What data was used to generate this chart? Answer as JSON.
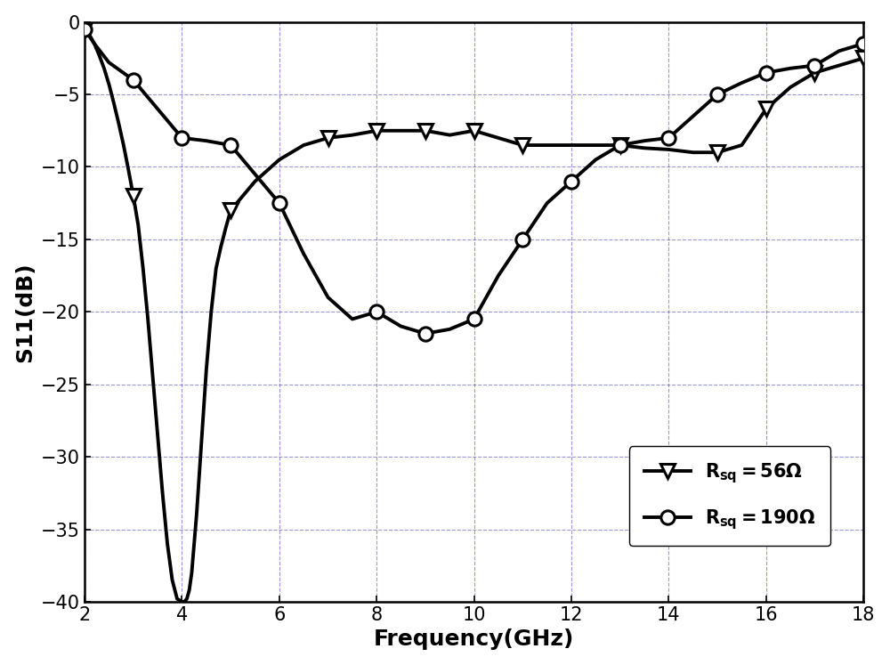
{
  "xlabel": "Frequency(GHz)",
  "ylabel": "S11(dB)",
  "xlim": [
    2,
    18
  ],
  "ylim": [
    -40,
    0
  ],
  "xticks": [
    2,
    4,
    6,
    8,
    10,
    12,
    14,
    16,
    18
  ],
  "yticks": [
    0,
    -5,
    -10,
    -15,
    -20,
    -25,
    -30,
    -35,
    -40
  ],
  "grid_color": "#3333aa",
  "grid_linestyle": "--",
  "background_color": "#ffffff",
  "line_color": "#000000",
  "line_width": 2.8,
  "series1_marker": "v",
  "series1_x": [
    2,
    3,
    5,
    7,
    8,
    9,
    10,
    11,
    13,
    15,
    16,
    17,
    18
  ],
  "series1_y": [
    -0.5,
    -12.0,
    -13.0,
    -8.0,
    -7.5,
    -7.5,
    -7.5,
    -8.5,
    -8.5,
    -9.0,
    -6.0,
    -3.5,
    -2.5
  ],
  "series2_marker": "o",
  "series2_x": [
    2,
    3,
    4,
    5,
    6,
    8,
    9,
    10,
    11,
    12,
    13,
    14,
    15,
    16,
    17,
    18
  ],
  "series2_y": [
    -0.5,
    -4.0,
    -8.0,
    -8.5,
    -12.5,
    -20.0,
    -21.5,
    -20.5,
    -15.0,
    -11.0,
    -8.5,
    -8.0,
    -5.0,
    -3.5,
    -3.0,
    -1.5
  ],
  "series1_dense_x": [
    2.0,
    2.1,
    2.2,
    2.3,
    2.4,
    2.5,
    2.6,
    2.7,
    2.8,
    2.9,
    3.0,
    3.1,
    3.2,
    3.3,
    3.4,
    3.5,
    3.6,
    3.7,
    3.8,
    3.9,
    4.0,
    4.05,
    4.1,
    4.15,
    4.2,
    4.3,
    4.4,
    4.5,
    4.6,
    4.7,
    4.8,
    4.9,
    5.0,
    5.5,
    6.0,
    6.5,
    7.0,
    7.5,
    8.0,
    8.5,
    9.0,
    9.5,
    10.0,
    10.5,
    11.0,
    11.5,
    12.0,
    12.5,
    13.0,
    13.5,
    14.0,
    14.5,
    15.0,
    15.5,
    16.0,
    16.5,
    17.0,
    17.5,
    18.0
  ],
  "series1_dense_y": [
    -0.5,
    -0.9,
    -1.5,
    -2.3,
    -3.2,
    -4.3,
    -5.6,
    -7.0,
    -8.5,
    -10.2,
    -12.0,
    -14.0,
    -17.0,
    -20.5,
    -24.5,
    -28.5,
    -32.5,
    -36.0,
    -38.5,
    -39.8,
    -40.0,
    -40.0,
    -39.8,
    -39.2,
    -38.0,
    -34.0,
    -29.0,
    -24.0,
    -20.0,
    -17.0,
    -15.5,
    -14.2,
    -13.0,
    -11.0,
    -9.5,
    -8.5,
    -8.0,
    -7.8,
    -7.5,
    -7.5,
    -7.5,
    -7.8,
    -7.5,
    -8.0,
    -8.5,
    -8.5,
    -8.5,
    -8.5,
    -8.5,
    -8.7,
    -8.8,
    -9.0,
    -9.0,
    -8.5,
    -6.0,
    -4.5,
    -3.5,
    -3.0,
    -2.5
  ],
  "series2_dense_x": [
    2.0,
    2.2,
    2.5,
    3.0,
    3.5,
    4.0,
    4.5,
    5.0,
    5.5,
    6.0,
    6.5,
    7.0,
    7.5,
    8.0,
    8.5,
    9.0,
    9.5,
    10.0,
    10.5,
    11.0,
    11.5,
    12.0,
    12.5,
    13.0,
    13.5,
    14.0,
    14.5,
    15.0,
    15.5,
    16.0,
    16.5,
    17.0,
    17.5,
    18.0
  ],
  "series2_dense_y": [
    -0.5,
    -1.5,
    -2.8,
    -4.0,
    -6.0,
    -8.0,
    -8.2,
    -8.5,
    -10.5,
    -12.5,
    -16.0,
    -19.0,
    -20.5,
    -20.0,
    -21.0,
    -21.5,
    -21.2,
    -20.5,
    -17.5,
    -15.0,
    -12.5,
    -11.0,
    -9.5,
    -8.5,
    -8.2,
    -8.0,
    -6.5,
    -5.0,
    -4.2,
    -3.5,
    -3.2,
    -3.0,
    -2.0,
    -1.5
  ],
  "marker_size": 11,
  "marker_face_color": "#ffffff",
  "marker_edge_color": "#000000",
  "marker_edge_width": 2.2,
  "legend_fontsize": 15,
  "axis_fontsize": 18,
  "tick_fontsize": 15
}
